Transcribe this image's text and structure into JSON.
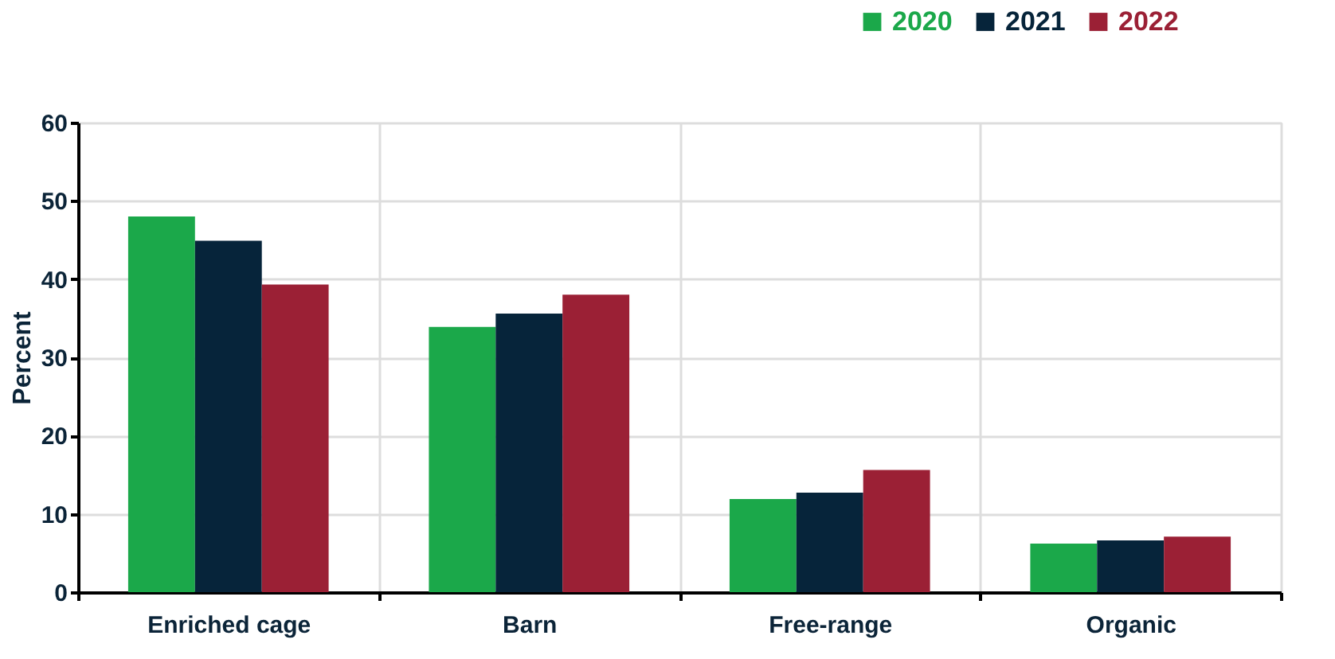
{
  "chart_data": {
    "type": "bar",
    "ylabel": "Percent",
    "categories": [
      "Enriched cage",
      "Barn",
      "Free-range",
      "Organic"
    ],
    "series": [
      {
        "name": "2020",
        "color": "#1ba84a",
        "values": [
          48.0,
          33.9,
          11.9,
          6.2
        ]
      },
      {
        "name": "2021",
        "color": "#06243a",
        "values": [
          44.9,
          35.6,
          12.7,
          6.6
        ]
      },
      {
        "name": "2022",
        "color": "#9b2035",
        "values": [
          39.3,
          38.0,
          15.6,
          7.1
        ]
      }
    ],
    "ylim": [
      0,
      60
    ],
    "yticks": [
      0,
      10,
      20,
      30,
      40,
      50,
      60
    ],
    "grid": true,
    "legend": "top right"
  }
}
